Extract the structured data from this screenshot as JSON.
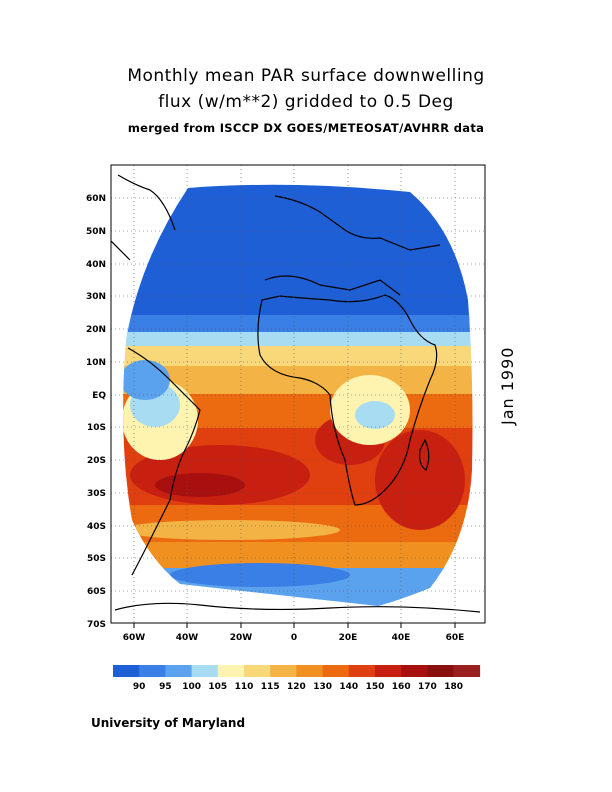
{
  "header": {
    "title_line1": "Monthly mean PAR surface downwelling",
    "title_line2": "flux (w/m**2) gridded to 0.5 Deg",
    "subtitle": "merged from ISCCP DX GOES/METEOSAT/AVHRR data"
  },
  "side_label": "Jan 1990",
  "footer": "University of Maryland",
  "map": {
    "lat_labels": [
      "60N",
      "50N",
      "40N",
      "30N",
      "20N",
      "10N",
      "EQ",
      "10S",
      "20S",
      "30S",
      "40S",
      "50S",
      "60S",
      "70S"
    ],
    "lon_labels": [
      "60W",
      "40W",
      "20W",
      "0",
      "20E",
      "40E",
      "60E"
    ],
    "grid": "dotted",
    "colors_meaning": "low values blue to high values dark red"
  },
  "colorbar": {
    "labels": [
      "90",
      "95",
      "100",
      "105",
      "110",
      "115",
      "120",
      "130",
      "140",
      "150",
      "160",
      "170",
      "180"
    ],
    "colors": [
      "#1e5fd6",
      "#3a7fe6",
      "#5aa2ee",
      "#a8dcf2",
      "#fff3b0",
      "#f8d878",
      "#f3b445",
      "#f09020",
      "#ec6a10",
      "#e04010",
      "#c82010",
      "#a81010",
      "#8a1010",
      "#9a1f1f"
    ]
  }
}
